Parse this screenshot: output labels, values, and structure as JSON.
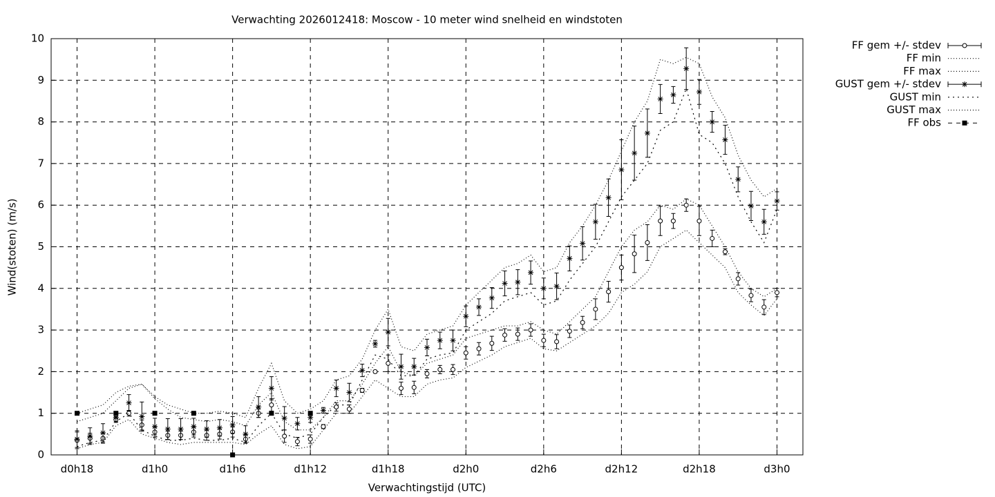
{
  "chart_data": {
    "type": "errorbar",
    "title": "Verwachting 2026012418: Moscow - 10 meter wind snelheid en windstoten",
    "xlabel": "Verwachtingstijd (UTC)",
    "ylabel": "Wind(stoten) (m/s)",
    "grid": true,
    "legend": "outside-top-right",
    "xlim": [
      16,
      74
    ],
    "xticks": [
      {
        "value": 18,
        "label": "d0h18"
      },
      {
        "value": 24,
        "label": "d1h0"
      },
      {
        "value": 30,
        "label": "d1h6"
      },
      {
        "value": 36,
        "label": "d1h12"
      },
      {
        "value": 42,
        "label": "d1h18"
      },
      {
        "value": 48,
        "label": "d2h0"
      },
      {
        "value": 54,
        "label": "d2h6"
      },
      {
        "value": 60,
        "label": "d2h12"
      },
      {
        "value": 66,
        "label": "d2h18"
      },
      {
        "value": 72,
        "label": "d3h0"
      }
    ],
    "ylim": [
      0,
      10
    ],
    "yticks": [
      0,
      1,
      2,
      3,
      4,
      5,
      6,
      7,
      8,
      9,
      10
    ],
    "x": [
      18,
      19,
      20,
      21,
      22,
      23,
      24,
      25,
      26,
      27,
      28,
      29,
      30,
      31,
      32,
      33,
      34,
      35,
      36,
      37,
      38,
      39,
      40,
      41,
      42,
      43,
      44,
      45,
      46,
      47,
      48,
      49,
      50,
      51,
      52,
      53,
      54,
      55,
      56,
      57,
      58,
      59,
      60,
      61,
      62,
      63,
      64,
      65,
      66,
      67,
      68,
      69,
      70,
      71,
      72
    ],
    "series": [
      {
        "name": "FF gem +/- stdev",
        "color": "#000000",
        "style": "errorbar-circle",
        "values": [
          0.35,
          0.4,
          0.4,
          0.85,
          1.0,
          0.72,
          0.55,
          0.47,
          0.47,
          0.55,
          0.47,
          0.5,
          0.55,
          0.38,
          1.0,
          1.2,
          0.45,
          0.32,
          0.38,
          0.68,
          1.15,
          1.1,
          1.55,
          2.0,
          2.2,
          1.6,
          1.62,
          1.95,
          2.05,
          2.05,
          2.45,
          2.55,
          2.68,
          2.88,
          2.9,
          3.0,
          2.75,
          2.72,
          2.97,
          3.18,
          3.5,
          3.92,
          4.5,
          4.83,
          5.1,
          5.62,
          5.62,
          6.0,
          5.62,
          5.2,
          4.88,
          4.23,
          3.83,
          3.55,
          3.9
        ],
        "errors": [
          0.2,
          0.12,
          0.12,
          0.07,
          0.07,
          0.12,
          0.12,
          0.1,
          0.1,
          0.12,
          0.12,
          0.12,
          0.12,
          0.1,
          0.1,
          0.15,
          0.15,
          0.1,
          0.1,
          0.05,
          0.1,
          0.1,
          0.05,
          0.03,
          0.2,
          0.15,
          0.15,
          0.1,
          0.1,
          0.12,
          0.15,
          0.15,
          0.17,
          0.15,
          0.15,
          0.15,
          0.15,
          0.17,
          0.15,
          0.15,
          0.25,
          0.25,
          0.3,
          0.45,
          0.43,
          0.35,
          0.18,
          0.15,
          0.35,
          0.2,
          0.07,
          0.15,
          0.15,
          0.18,
          0.1
        ]
      },
      {
        "name": "FF min",
        "color": "#000000",
        "style": "dotted-fine",
        "values": [
          0.15,
          0.25,
          0.3,
          0.7,
          0.85,
          0.5,
          0.4,
          0.3,
          0.25,
          0.3,
          0.3,
          0.3,
          0.3,
          0.25,
          0.5,
          0.7,
          0.25,
          0.15,
          0.2,
          0.6,
          1.0,
          1.0,
          1.4,
          1.8,
          1.6,
          1.4,
          1.4,
          1.7,
          1.8,
          1.85,
          2.1,
          2.25,
          2.4,
          2.6,
          2.7,
          2.8,
          2.55,
          2.5,
          2.7,
          2.9,
          3.1,
          3.4,
          3.9,
          4.1,
          4.4,
          5.0,
          5.2,
          5.4,
          5.1,
          4.8,
          4.5,
          3.9,
          3.6,
          3.35,
          3.75
        ]
      },
      {
        "name": "FF max",
        "color": "#000000",
        "style": "dotted-fine",
        "values": [
          0.8,
          0.9,
          1.0,
          1.3,
          1.6,
          1.7,
          1.35,
          1.1,
          0.9,
          0.85,
          0.8,
          0.85,
          0.8,
          0.7,
          1.2,
          1.5,
          0.8,
          0.6,
          0.6,
          0.9,
          1.3,
          1.3,
          1.7,
          2.2,
          2.6,
          2.0,
          1.9,
          2.2,
          2.3,
          2.4,
          2.8,
          2.9,
          3.0,
          3.1,
          3.1,
          3.2,
          3.0,
          2.9,
          3.2,
          3.5,
          3.8,
          4.4,
          5.0,
          5.4,
          5.6,
          6.0,
          5.9,
          6.15,
          6.0,
          5.5,
          5.0,
          4.4,
          4.0,
          3.8,
          4.0
        ]
      },
      {
        "name": "GUST gem +/- stdev",
        "color": "#000000",
        "style": "errorbar-star",
        "values": [
          0.38,
          0.45,
          0.53,
          0.9,
          1.25,
          0.92,
          0.68,
          0.62,
          0.62,
          0.68,
          0.62,
          0.65,
          0.72,
          0.5,
          1.15,
          1.6,
          0.88,
          0.75,
          0.9,
          1.07,
          1.6,
          1.5,
          2.03,
          2.67,
          2.95,
          2.12,
          2.12,
          2.58,
          2.75,
          2.75,
          3.33,
          3.55,
          3.77,
          4.12,
          4.15,
          4.38,
          4.0,
          4.05,
          4.72,
          5.08,
          5.6,
          6.18,
          6.85,
          7.25,
          7.73,
          8.55,
          8.65,
          9.28,
          8.72,
          8.0,
          7.57,
          6.62,
          5.98,
          5.6,
          6.1
        ],
        "errors": [
          0.2,
          0.2,
          0.22,
          0.1,
          0.2,
          0.35,
          0.2,
          0.25,
          0.25,
          0.2,
          0.2,
          0.2,
          0.2,
          0.2,
          0.25,
          0.28,
          0.28,
          0.15,
          0.12,
          0.07,
          0.2,
          0.22,
          0.15,
          0.08,
          0.33,
          0.3,
          0.2,
          0.2,
          0.2,
          0.25,
          0.25,
          0.2,
          0.25,
          0.3,
          0.3,
          0.28,
          0.25,
          0.32,
          0.3,
          0.4,
          0.42,
          0.45,
          0.72,
          0.65,
          0.58,
          0.35,
          0.2,
          0.5,
          0.3,
          0.25,
          0.35,
          0.3,
          0.35,
          0.3,
          0.22
        ]
      },
      {
        "name": "GUST min",
        "color": "#000000",
        "style": "dotted-coarse",
        "values": [
          0.2,
          0.3,
          0.35,
          0.8,
          1.0,
          0.6,
          0.45,
          0.35,
          0.35,
          0.4,
          0.35,
          0.35,
          0.4,
          0.3,
          0.7,
          1.0,
          0.5,
          0.4,
          0.5,
          0.9,
          1.2,
          1.2,
          1.8,
          2.4,
          2.3,
          1.9,
          1.9,
          2.3,
          2.4,
          2.45,
          3.0,
          3.2,
          3.4,
          3.7,
          3.8,
          3.9,
          3.6,
          3.7,
          4.2,
          4.6,
          5.0,
          5.6,
          6.2,
          6.6,
          7.0,
          7.8,
          8.0,
          8.8,
          7.7,
          7.5,
          7.0,
          6.2,
          5.6,
          5.1,
          5.9
        ]
      },
      {
        "name": "GUST max",
        "color": "#000000",
        "style": "dotted-fine",
        "values": [
          1.0,
          1.1,
          1.2,
          1.5,
          1.65,
          1.7,
          1.4,
          1.2,
          1.1,
          1.0,
          1.0,
          1.05,
          1.0,
          0.9,
          1.6,
          2.2,
          1.3,
          1.0,
          1.1,
          1.3,
          1.8,
          1.9,
          2.3,
          3.0,
          3.5,
          2.6,
          2.5,
          2.9,
          3.0,
          3.1,
          3.6,
          3.9,
          4.2,
          4.5,
          4.6,
          4.8,
          4.4,
          4.5,
          5.1,
          5.5,
          6.0,
          6.6,
          7.3,
          8.0,
          8.5,
          9.5,
          9.4,
          9.55,
          9.4,
          8.6,
          8.1,
          7.2,
          6.6,
          6.2,
          6.4
        ]
      },
      {
        "name": "FF obs",
        "color": "#000000",
        "style": "points-square",
        "x": [
          18,
          21,
          24,
          27,
          30,
          33,
          36
        ],
        "values": [
          1.0,
          1.0,
          1.0,
          1.0,
          0.0,
          1.0,
          1.0
        ]
      }
    ]
  }
}
